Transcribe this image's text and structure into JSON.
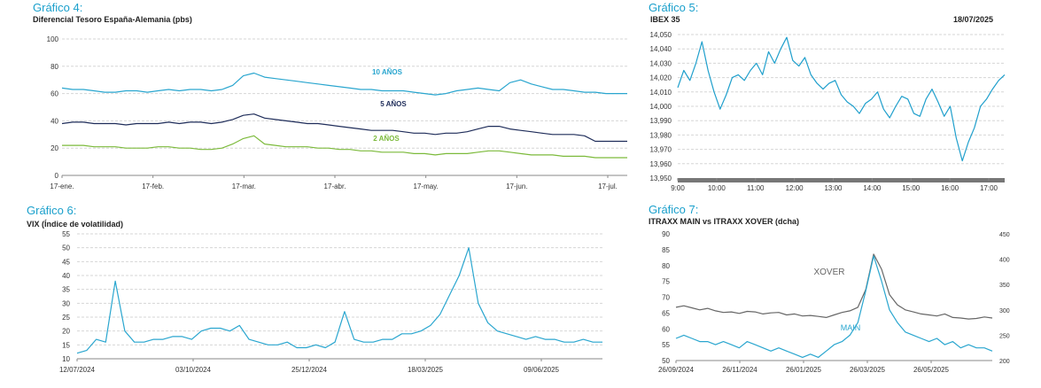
{
  "colors": {
    "title": "#1ba0cc",
    "text": "#333333",
    "grid": "#d6d6d6",
    "axis": "#8a8a8a",
    "ten_year": "#2aa6cf",
    "five_year": "#1f2d5a",
    "two_year": "#7cba3b",
    "ibex": "#1f9fcc",
    "ibex_bar": "#777777",
    "vix": "#2aa6cf",
    "main": "#2aa6cf",
    "xover": "#666666"
  },
  "charts": {
    "g4": {
      "heading": "Gráfico 4:",
      "subtitle": "Diferencial Tesoro España-Alemania (pbs)"
    },
    "g5": {
      "heading": "Gráfico 5:",
      "subtitle": "IBEX 35",
      "date": "18/07/2025"
    },
    "g6": {
      "heading": "Gráfico 6:",
      "subtitle": "VIX (Índice de volatilidad)"
    },
    "g7": {
      "heading": "Gráfico 7:",
      "subtitle": "ITRAXX MAIN vs ITRAXX XOVER (dcha)"
    }
  },
  "chart_data": [
    {
      "id": "g4",
      "type": "line",
      "title": "Diferencial Tesoro España-Alemania (pbs)",
      "ylim": [
        0,
        100
      ],
      "yticks": [
        0,
        20,
        40,
        60,
        80,
        100
      ],
      "x_tick_labels": [
        "17-ene.",
        "17-feb.",
        "17-mar.",
        "17-abr.",
        "17-may.",
        "17-jun.",
        "17-jul."
      ],
      "grid": true,
      "series": [
        {
          "name": "10 AÑOS",
          "color_key": "ten_year",
          "values": [
            64,
            63,
            63,
            62,
            61,
            61,
            62,
            62,
            61,
            62,
            63,
            62,
            63,
            63,
            62,
            63,
            66,
            73,
            75,
            72,
            71,
            70,
            69,
            68,
            67,
            66,
            65,
            64,
            63,
            63,
            62,
            62,
            62,
            61,
            60,
            59,
            60,
            62,
            63,
            64,
            63,
            62,
            68,
            70,
            67,
            65,
            63,
            63,
            62,
            61,
            61,
            60,
            60,
            60
          ]
        },
        {
          "name": "5 AÑOS",
          "color_key": "five_year",
          "values": [
            38,
            39,
            39,
            38,
            38,
            38,
            37,
            38,
            38,
            38,
            39,
            38,
            39,
            39,
            38,
            39,
            41,
            44,
            45,
            42,
            41,
            40,
            39,
            38,
            38,
            37,
            36,
            35,
            34,
            33,
            33,
            33,
            32,
            31,
            31,
            30,
            31,
            31,
            32,
            34,
            36,
            36,
            34,
            33,
            32,
            31,
            30,
            30,
            30,
            29,
            25,
            25,
            25,
            25
          ]
        },
        {
          "name": "2 AÑOS",
          "color_key": "two_year",
          "values": [
            22,
            22,
            22,
            21,
            21,
            21,
            20,
            20,
            20,
            21,
            21,
            20,
            20,
            19,
            19,
            20,
            23,
            27,
            29,
            23,
            22,
            21,
            21,
            21,
            20,
            20,
            19,
            19,
            18,
            18,
            17,
            17,
            17,
            16,
            16,
            15,
            16,
            16,
            16,
            17,
            18,
            18,
            17,
            16,
            15,
            15,
            15,
            14,
            14,
            14,
            13,
            13,
            13,
            13
          ]
        }
      ],
      "annotations": [
        "10 AÑOS",
        "5 AÑOS",
        "2 AÑOS"
      ]
    },
    {
      "id": "g5",
      "type": "line",
      "title": "IBEX 35",
      "ylim": [
        13950,
        14050
      ],
      "yticks": [
        13950,
        13960,
        13970,
        13980,
        13990,
        14000,
        14010,
        14020,
        14030,
        14040,
        14050
      ],
      "y_tick_labels": [
        "13,950",
        "13,960",
        "13,970",
        "13,980",
        "13,990",
        "14,000",
        "14,010",
        "14,020",
        "14,030",
        "14,040",
        "14,050"
      ],
      "x_tick_labels": [
        "9:00",
        "10:00",
        "11:00",
        "12:00",
        "13:00",
        "14:00",
        "15:00",
        "16:00",
        "17:00"
      ],
      "grid": true,
      "series": [
        {
          "name": "",
          "color_key": "ibex",
          "values": [
            14013,
            14025,
            14018,
            14030,
            14045,
            14025,
            14010,
            13998,
            14008,
            14020,
            14022,
            14018,
            14025,
            14030,
            14022,
            14038,
            14030,
            14040,
            14048,
            14032,
            14028,
            14034,
            14022,
            14016,
            14012,
            14016,
            14018,
            14008,
            14003,
            14000,
            13995,
            14002,
            14005,
            14010,
            13998,
            13992,
            14000,
            14007,
            14005,
            13995,
            13993,
            14005,
            14012,
            14003,
            13993,
            14000,
            13978,
            13962,
            13975,
            13985,
            14000,
            14005,
            14012,
            14018,
            14022
          ]
        }
      ]
    },
    {
      "id": "g6",
      "type": "line",
      "title": "VIX (Índice de volatilidad)",
      "ylim": [
        10,
        55
      ],
      "yticks": [
        10,
        15,
        20,
        25,
        30,
        35,
        40,
        45,
        50,
        55
      ],
      "x_tick_labels": [
        "12/07/2024",
        "03/10/2024",
        "25/12/2024",
        "18/03/2025",
        "09/06/2025"
      ],
      "grid": true,
      "series": [
        {
          "name": "",
          "color_key": "vix",
          "values": [
            12,
            13,
            17,
            16,
            38,
            20,
            16,
            16,
            17,
            17,
            18,
            18,
            17,
            20,
            21,
            21,
            20,
            22,
            17,
            16,
            15,
            15,
            16,
            14,
            14,
            15,
            14,
            16,
            27,
            17,
            16,
            16,
            17,
            17,
            19,
            19,
            20,
            22,
            26,
            33,
            40,
            50,
            30,
            23,
            20,
            19,
            18,
            17,
            18,
            17,
            17,
            16,
            16,
            17,
            16,
            16
          ]
        }
      ]
    },
    {
      "id": "g7",
      "type": "line",
      "title": "ITRAXX MAIN vs ITRAXX XOVER (dcha)",
      "ylim": [
        50,
        90
      ],
      "yticks": [
        50,
        55,
        60,
        65,
        70,
        75,
        80,
        85,
        90
      ],
      "y2lim": [
        200,
        450
      ],
      "y2ticks": [
        200,
        250,
        300,
        350,
        400,
        450
      ],
      "x_tick_labels": [
        "26/09/2024",
        "26/11/2024",
        "26/01/2025",
        "26/03/2025",
        "26/05/2025"
      ],
      "grid": false,
      "series": [
        {
          "name": "XOVER",
          "color_key": "xover",
          "axis": "right",
          "values": [
            305,
            308,
            304,
            300,
            303,
            298,
            295,
            296,
            293,
            297,
            296,
            292,
            294,
            295,
            290,
            292,
            288,
            289,
            287,
            285,
            290,
            295,
            298,
            305,
            340,
            410,
            380,
            330,
            310,
            300,
            296,
            292,
            290,
            288,
            292,
            285,
            284,
            282,
            283,
            286,
            284
          ]
        },
        {
          "name": "MAIN",
          "color_key": "main",
          "axis": "left",
          "values": [
            57,
            58,
            57,
            56,
            56,
            55,
            56,
            55,
            54,
            56,
            55,
            54,
            53,
            54,
            53,
            52,
            51,
            52,
            51,
            53,
            55,
            56,
            58,
            62,
            72,
            83,
            75,
            66,
            62,
            59,
            58,
            57,
            56,
            57,
            55,
            56,
            54,
            55,
            54,
            54,
            53
          ]
        }
      ]
    }
  ]
}
